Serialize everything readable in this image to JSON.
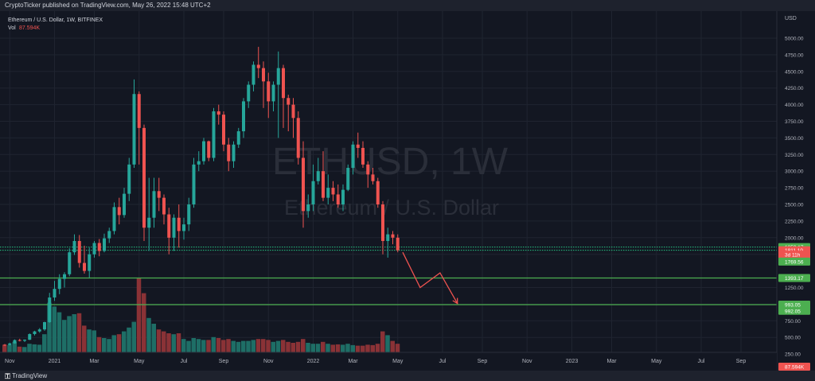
{
  "header": {
    "published_text": "CryptoTicker published on TradingView.com, May 26, 2022 15:48 UTC+2"
  },
  "legend": {
    "symbol_line": "Ethereum / U.S. Dollar, 1W, BITFINEX",
    "vol_label": "Vol",
    "vol_value": "87.594K"
  },
  "watermark": {
    "ticker": "ETHUSD, 1W",
    "name": "Ethereum / U.S. Dollar"
  },
  "price_axis": {
    "currency": "USD",
    "ticks": [
      "5000.00",
      "4750.00",
      "4500.00",
      "4250.00",
      "4000.00",
      "3750.00",
      "3500.00",
      "3250.00",
      "3000.00",
      "2750.00",
      "2500.00",
      "2250.00",
      "2000.00",
      "1750.00",
      "1250.00",
      "1000.00",
      "750.00",
      "500.00",
      "250.00"
    ]
  },
  "price_badges": [
    {
      "value": "1859.17",
      "price": 1859.17,
      "color": "#4caf50"
    },
    {
      "value": "1811.10",
      "price": 1811.1,
      "color": "#ef5350"
    },
    {
      "value": "3d 11h",
      "price": 1745,
      "color": "#ef5350"
    },
    {
      "value": "1769.56",
      "price": 1640,
      "color": "#4caf50"
    },
    {
      "value": "1393.17",
      "price": 1393.17,
      "color": "#4caf50"
    },
    {
      "value": "993.05",
      "price": 993.05,
      "color": "#4caf50"
    },
    {
      "value": "992.05",
      "price": 900,
      "color": "#4caf50"
    },
    {
      "value": "87.594K",
      "price": 60,
      "color": "#ef5350"
    }
  ],
  "levels": [
    {
      "price": 1859.17,
      "style": "dotted",
      "color": "#26c281"
    },
    {
      "price": 1811.1,
      "style": "dotted",
      "color": "#26c281"
    },
    {
      "price": 1393.17,
      "style": "solid",
      "color": "#4caf50"
    },
    {
      "price": 993.05,
      "style": "solid",
      "color": "#4caf50"
    }
  ],
  "time_axis": [
    {
      "label": "Nov",
      "week": 1
    },
    {
      "label": "2021",
      "week": 10
    },
    {
      "label": "Mar",
      "week": 18
    },
    {
      "label": "May",
      "week": 27
    },
    {
      "label": "Jul",
      "week": 36
    },
    {
      "label": "Sep",
      "week": 44
    },
    {
      "label": "Nov",
      "week": 53
    },
    {
      "label": "2022",
      "week": 62
    },
    {
      "label": "Mar",
      "week": 70
    },
    {
      "label": "May",
      "week": 79
    },
    {
      "label": "Jul",
      "week": 88
    },
    {
      "label": "Sep",
      "week": 96
    },
    {
      "label": "Nov",
      "week": 105
    },
    {
      "label": "2023",
      "week": 114
    },
    {
      "label": "Mar",
      "week": 122
    },
    {
      "label": "May",
      "week": 131
    },
    {
      "label": "Jul",
      "week": 140
    },
    {
      "label": "Sep",
      "week": 148
    }
  ],
  "projection_path": [
    {
      "week": 80,
      "price": 1780
    },
    {
      "week": 83.5,
      "price": 1250
    },
    {
      "week": 87.5,
      "price": 1470
    },
    {
      "week": 91,
      "price": 1010
    }
  ],
  "colors": {
    "up": "#26a69a",
    "down": "#ef5350",
    "vol_up": "#1e6e66",
    "vol_down": "#8a3236",
    "projection": "#ef5350"
  },
  "footer": {
    "logo_icon": "tradingview-logo-icon",
    "logo_text": "TradingView"
  },
  "chart_data": {
    "type": "candlestick",
    "interval": "1W",
    "symbol": "ETHUSD",
    "exchange": "BITFINEX",
    "ylim": [
      0,
      5200
    ],
    "candles": [
      [
        390,
        400,
        370,
        385,
        40
      ],
      [
        385,
        420,
        380,
        410,
        38
      ],
      [
        410,
        470,
        405,
        460,
        55
      ],
      [
        460,
        480,
        440,
        450,
        30
      ],
      [
        450,
        470,
        430,
        465,
        28
      ],
      [
        465,
        560,
        460,
        550,
        45
      ],
      [
        550,
        600,
        530,
        590,
        42
      ],
      [
        590,
        640,
        570,
        620,
        40
      ],
      [
        620,
        735,
        600,
        730,
        95
      ],
      [
        730,
        1170,
        720,
        1100,
        260
      ],
      [
        1100,
        1350,
        1050,
        1230,
        240
      ],
      [
        1230,
        1450,
        1150,
        1380,
        210
      ],
      [
        1380,
        1480,
        1250,
        1450,
        170
      ],
      [
        1450,
        1840,
        1420,
        1780,
        190
      ],
      [
        1780,
        2050,
        1740,
        1950,
        200
      ],
      [
        1950,
        2040,
        1550,
        1620,
        205
      ],
      [
        1620,
        1880,
        1460,
        1500,
        140
      ],
      [
        1500,
        1850,
        1400,
        1750,
        120
      ],
      [
        1750,
        1950,
        1700,
        1920,
        115
      ],
      [
        1920,
        1980,
        1720,
        1800,
        80
      ],
      [
        1800,
        2060,
        1780,
        1990,
        75
      ],
      [
        1990,
        2150,
        1920,
        2100,
        70
      ],
      [
        2100,
        2530,
        2050,
        2460,
        90
      ],
      [
        2460,
        2600,
        2200,
        2340,
        95
      ],
      [
        2340,
        2750,
        2300,
        2660,
        110
      ],
      [
        2660,
        3200,
        2550,
        3100,
        130
      ],
      [
        3100,
        4380,
        3050,
        4160,
        160
      ],
      [
        4160,
        4200,
        3100,
        3650,
        390
      ],
      [
        3650,
        3700,
        1950,
        2150,
        310
      ],
      [
        2150,
        2900,
        1800,
        2300,
        180
      ],
      [
        2300,
        2900,
        2150,
        2700,
        150
      ],
      [
        2700,
        2900,
        2400,
        2600,
        120
      ],
      [
        2600,
        2650,
        2200,
        2350,
        110
      ],
      [
        2350,
        2450,
        1750,
        2000,
        100
      ],
      [
        2000,
        2350,
        1800,
        2300,
        95
      ],
      [
        2300,
        2500,
        1850,
        2100,
        100
      ],
      [
        2100,
        2300,
        1970,
        2200,
        70
      ],
      [
        2200,
        2600,
        2100,
        2500,
        60
      ],
      [
        2500,
        3200,
        2450,
        3100,
        75
      ],
      [
        3100,
        3300,
        3000,
        3150,
        70
      ],
      [
        3150,
        3500,
        3100,
        3450,
        65
      ],
      [
        3450,
        3460,
        3150,
        3200,
        65
      ],
      [
        3200,
        3950,
        3150,
        3900,
        80
      ],
      [
        3900,
        4000,
        3700,
        3850,
        75
      ],
      [
        3850,
        3900,
        3300,
        3400,
        65
      ],
      [
        3400,
        3500,
        3000,
        3150,
        70
      ],
      [
        3150,
        3450,
        3050,
        3400,
        60
      ],
      [
        3400,
        3650,
        3350,
        3600,
        55
      ],
      [
        3600,
        4100,
        3500,
        4050,
        60
      ],
      [
        4050,
        4350,
        3950,
        4300,
        60
      ],
      [
        4300,
        4650,
        4200,
        4600,
        65
      ],
      [
        4600,
        4870,
        4400,
        4550,
        70
      ],
      [
        4550,
        4650,
        3950,
        4350,
        70
      ],
      [
        4350,
        4480,
        3800,
        4050,
        65
      ],
      [
        4050,
        4350,
        3900,
        4300,
        55
      ],
      [
        4300,
        4800,
        3500,
        4550,
        60
      ],
      [
        4550,
        4600,
        3650,
        4100,
        65
      ],
      [
        4100,
        4150,
        3600,
        4000,
        55
      ],
      [
        4000,
        4100,
        3500,
        3800,
        50
      ],
      [
        3800,
        3900,
        3100,
        3200,
        55
      ],
      [
        3200,
        3450,
        2150,
        2400,
        70
      ],
      [
        2400,
        2650,
        2300,
        2500,
        50
      ],
      [
        2500,
        3100,
        2400,
        2850,
        45
      ],
      [
        2850,
        3200,
        2800,
        3000,
        45
      ],
      [
        3000,
        3300,
        2550,
        2600,
        55
      ],
      [
        2600,
        2950,
        2500,
        2750,
        45
      ],
      [
        2750,
        2850,
        2550,
        2650,
        40
      ],
      [
        2650,
        2800,
        2450,
        2500,
        42
      ],
      [
        2500,
        2800,
        2400,
        2720,
        40
      ],
      [
        2720,
        3100,
        2700,
        3050,
        45
      ],
      [
        3050,
        3450,
        2950,
        3400,
        38
      ],
      [
        3400,
        3580,
        3200,
        3350,
        35
      ],
      [
        3350,
        3450,
        3050,
        3100,
        35
      ],
      [
        3100,
        3150,
        2750,
        2950,
        40
      ],
      [
        2950,
        3050,
        2800,
        2850,
        38
      ],
      [
        2850,
        2900,
        2450,
        2500,
        45
      ],
      [
        2500,
        2550,
        1750,
        1950,
        110
      ],
      [
        1950,
        2150,
        1700,
        2050,
        90
      ],
      [
        2050,
        2100,
        1900,
        2000,
        60
      ],
      [
        2000,
        2050,
        1780,
        1811,
        45
      ]
    ]
  }
}
